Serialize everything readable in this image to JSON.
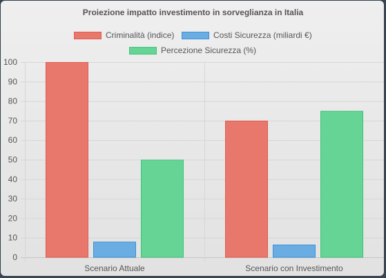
{
  "chart_data": {
    "type": "bar",
    "title": "Proiezione impatto investimento in sorveglianza in Italia",
    "categories": [
      "Scenario Attuale",
      "Scenario con Investimento"
    ],
    "series": [
      {
        "name": "Criminalità (indice)",
        "values": [
          100,
          70
        ],
        "color": "#e8776c",
        "border": "#e05a4d"
      },
      {
        "name": "Costi Sicurezza (miliardi €)",
        "values": [
          8,
          6.5
        ],
        "color": "#69ade3",
        "border": "#3d8fd3"
      },
      {
        "name": "Percezione Sicurezza (%)",
        "values": [
          50,
          75
        ],
        "color": "#66d495",
        "border": "#3fc27a"
      }
    ],
    "ylim": [
      0,
      100
    ],
    "yticks": [
      0,
      10,
      20,
      30,
      40,
      50,
      60,
      70,
      80,
      90,
      100
    ],
    "grid": true,
    "legend_position": "top"
  }
}
